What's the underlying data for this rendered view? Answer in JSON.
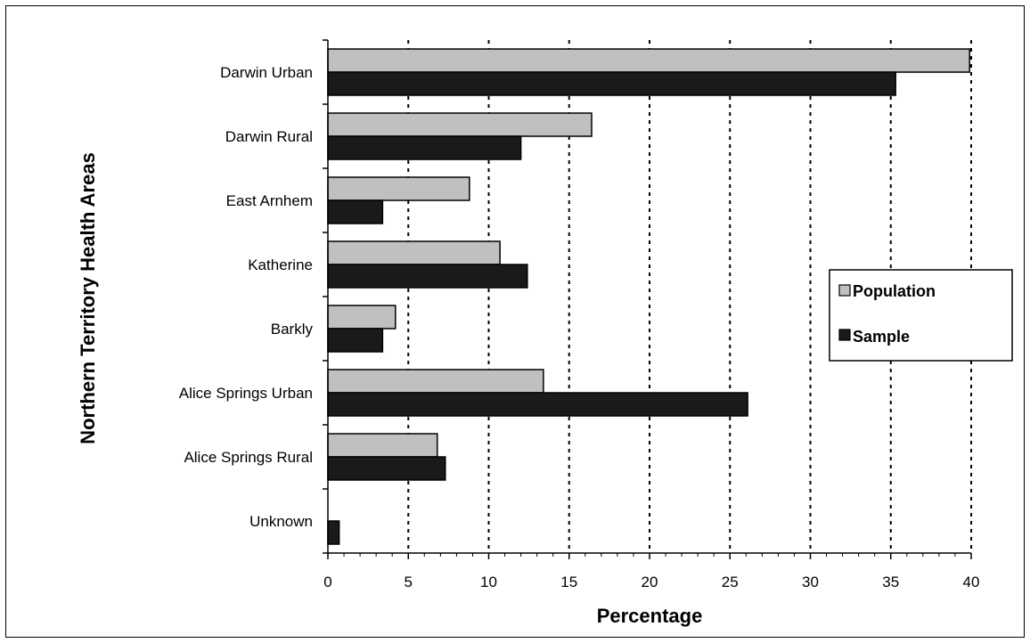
{
  "chart_data": {
    "type": "bar",
    "orientation": "horizontal",
    "categories": [
      "Darwin Urban",
      "Darwin Rural",
      "East Arnhem",
      "Katherine",
      "Barkly",
      "Alice Springs Urban",
      "Alice Springs Rural",
      "Unknown"
    ],
    "series": [
      {
        "name": "Population",
        "color": "#c0c0c0",
        "values": [
          39.9,
          16.4,
          8.8,
          10.7,
          4.2,
          13.4,
          6.8,
          0
        ]
      },
      {
        "name": "Sample",
        "color": "#1a1a1a",
        "values": [
          35.3,
          12.0,
          3.4,
          12.4,
          3.4,
          26.1,
          7.3,
          0.7
        ]
      }
    ],
    "xlabel": "Percentage",
    "ylabel": "Northern Territory Health Areas",
    "xlim": [
      0,
      40
    ],
    "xticks": [
      "0",
      "5",
      "10",
      "15",
      "20",
      "25",
      "30",
      "35",
      "40"
    ],
    "grid": "vertical dotted",
    "legend_position": "right"
  }
}
